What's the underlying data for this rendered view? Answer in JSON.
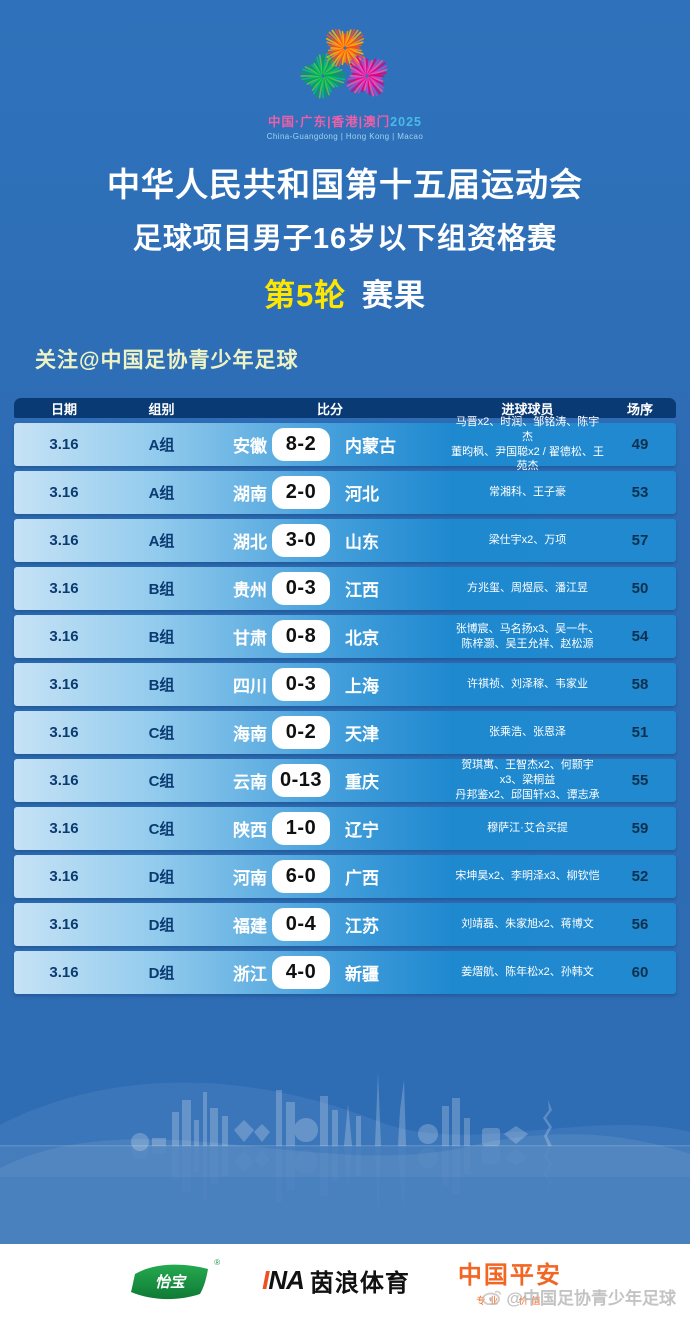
{
  "event": {
    "logo_cn": "中国·广东|香港|澳门",
    "logo_year": "2025",
    "logo_en": "China-Guangdong | Hong Kong | Macao",
    "title": "中华人民共和国第十五届运动会",
    "subtitle": "足球项目男子16岁以下组资格赛",
    "round_highlight": "第5轮",
    "round_rest": "赛果",
    "follow": "关注@中国足协青少年足球"
  },
  "table": {
    "headers": {
      "date": "日期",
      "group": "组别",
      "score": "比分",
      "scorers": "进球球员",
      "order": "场序"
    },
    "rows": [
      {
        "date": "3.16",
        "group": "A组",
        "home": "安徽",
        "score": "8-2",
        "away": "内蒙古",
        "scorers": "马晋x2、时润、邹铭涛、陈宇杰\n董昀枫、尹国聪x2 / 翟德松、王苑杰",
        "order": "49"
      },
      {
        "date": "3.16",
        "group": "A组",
        "home": "湖南",
        "score": "2-0",
        "away": "河北",
        "scorers": "常湘科、王子豪",
        "order": "53"
      },
      {
        "date": "3.16",
        "group": "A组",
        "home": "湖北",
        "score": "3-0",
        "away": "山东",
        "scorers": "梁仕宇x2、万项",
        "order": "57"
      },
      {
        "date": "3.16",
        "group": "B组",
        "home": "贵州",
        "score": "0-3",
        "away": "江西",
        "scorers": "方兆玺、周煜辰、潘江昱",
        "order": "50"
      },
      {
        "date": "3.16",
        "group": "B组",
        "home": "甘肃",
        "score": "0-8",
        "away": "北京",
        "scorers": "张博宸、马名扬x3、吴一牛、陈梓灏、吴王允祥、赵松源",
        "order": "54"
      },
      {
        "date": "3.16",
        "group": "B组",
        "home": "四川",
        "score": "0-3",
        "away": "上海",
        "scorers": "许祺祯、刘泽稼、韦家业",
        "order": "58"
      },
      {
        "date": "3.16",
        "group": "C组",
        "home": "海南",
        "score": "0-2",
        "away": "天津",
        "scorers": "张乘浩、张恩泽",
        "order": "51"
      },
      {
        "date": "3.16",
        "group": "C组",
        "home": "云南",
        "score": "0-13",
        "away": "重庆",
        "scorers": "贺琪寓、王智杰x2、何颢宇x3、梁桐益\n丹邦鉴x2、邱国轩x3、谭志承",
        "order": "55"
      },
      {
        "date": "3.16",
        "group": "C组",
        "home": "陕西",
        "score": "1-0",
        "away": "辽宁",
        "scorers": "穆萨江·艾合买提",
        "order": "59"
      },
      {
        "date": "3.16",
        "group": "D组",
        "home": "河南",
        "score": "6-0",
        "away": "广西",
        "scorers": "宋坤昊x2、李明泽x3、柳钦恺",
        "order": "52"
      },
      {
        "date": "3.16",
        "group": "D组",
        "home": "福建",
        "score": "0-4",
        "away": "江苏",
        "scorers": "刘靖磊、朱家旭x2、蒋博文",
        "order": "56"
      },
      {
        "date": "3.16",
        "group": "D组",
        "home": "浙江",
        "score": "4-0",
        "away": "新疆",
        "scorers": "姜熠航、陈年松x2、孙韩文",
        "order": "60"
      }
    ]
  },
  "footer": {
    "sponsor1": "怡宝",
    "sponsor1_reg": "®",
    "sponsor2_latin": "INA",
    "sponsor2_cn": "茵浪体育",
    "sponsor3": "中国平安",
    "sponsor3_sub": "专业 · 价值",
    "watermark": "@中国足协青少年足球"
  },
  "colors": {
    "background": "#2e6db5",
    "table_header": "#0a3a74",
    "row_gradient_left": "#c6e2f5",
    "row_gradient_right": "#2089cf",
    "round_highlight": "#ffe600",
    "follow_text": "#eef3c6",
    "sponsor_green": "#1e9e44",
    "sponsor_orange": "#f26522",
    "ina_slash_orange": "#f04e23"
  }
}
